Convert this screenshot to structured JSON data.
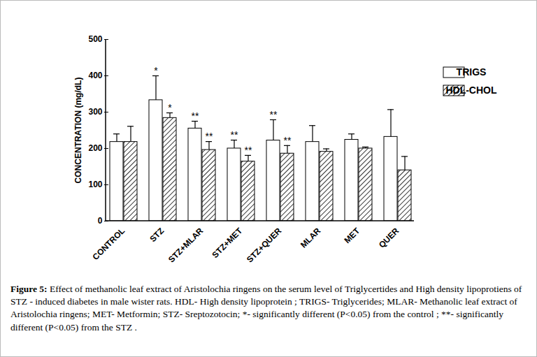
{
  "chart_data": {
    "type": "bar",
    "y_label": "CONCENTRATION (mg/dL)",
    "categories": [
      "CONTROL",
      "STZ",
      "STZ+MLAR",
      "STZ+MET",
      "STZ+QUER",
      "MLAR",
      "MET",
      "QUER"
    ],
    "series": [
      {
        "name": "TRIGS",
        "color": "#ffffff",
        "values": [
          218,
          333,
          255,
          200,
          222,
          218,
          224,
          232
        ],
        "errors": [
          22,
          67,
          20,
          23,
          57,
          45,
          16,
          75
        ],
        "annotations": [
          null,
          "*",
          "**",
          "**",
          "**",
          null,
          null,
          null
        ]
      },
      {
        "name": "HDL-CHOL",
        "color": "#000000",
        "values": [
          218,
          284,
          196,
          164,
          186,
          191,
          200,
          140
        ],
        "errors": [
          43,
          14,
          23,
          17,
          22,
          8,
          4,
          38
        ],
        "annotations": [
          null,
          "*",
          "**",
          "**",
          "**",
          null,
          null,
          null
        ]
      }
    ],
    "ylim": [
      0,
      500
    ],
    "yticks": [
      0,
      100,
      200,
      300,
      400,
      500
    ],
    "legend": "top-right",
    "grid": false,
    "caption": {
      "label": "Figure 5:",
      "text": "Effect of methanolic leaf extract of Aristolochia ringens on the serum level of Triglycertides and High density lipoprotiens of STZ - induced diabetes in male wister rats. HDL- High density lipoprotein ; TRIGS- Triglycerides; MLAR- Methanolic leaf extract of Aristolochia ringens; MET- Metformin; STZ- Sreptozotocin; *- significantly different (P<0.05) from the control ; **- significantly different (P<0.05) from the STZ ."
    }
  }
}
